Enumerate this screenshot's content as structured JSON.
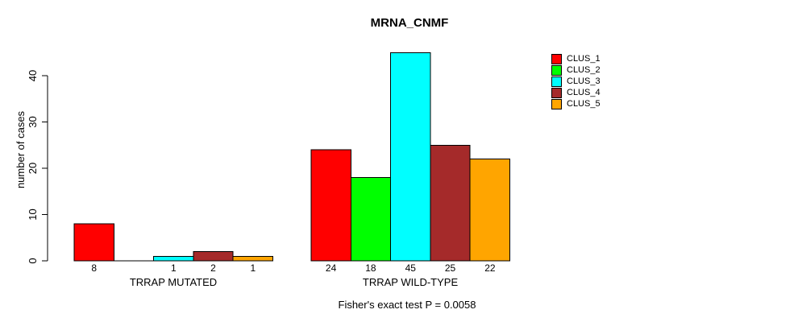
{
  "chart_data": {
    "type": "bar",
    "title": "MRNA_CNMF",
    "ylabel": "number of cases",
    "xlabel": "",
    "annotation": "Fisher's exact test P = 0.0058",
    "categories": [
      "TRRAP MUTATED",
      "TRRAP WILD-TYPE"
    ],
    "series": [
      {
        "name": "CLUS_1",
        "color": "#ff0000",
        "values": [
          8,
          24
        ]
      },
      {
        "name": "CLUS_2",
        "color": "#00ff00",
        "values": [
          0,
          18
        ]
      },
      {
        "name": "CLUS_3",
        "color": "#00ffff",
        "values": [
          1,
          45
        ]
      },
      {
        "name": "CLUS_4",
        "color": "#a52a2a",
        "values": [
          2,
          25
        ]
      },
      {
        "name": "CLUS_5",
        "color": "#ffa500",
        "values": [
          1,
          22
        ]
      }
    ],
    "bar_labels": [
      [
        "8",
        "",
        "1",
        "2",
        "1"
      ],
      [
        "24",
        "18",
        "45",
        "25",
        "22"
      ]
    ],
    "yticks": [
      0,
      10,
      20,
      30,
      40
    ],
    "ylim": [
      0,
      46
    ],
    "grid": false,
    "legend_position": "right",
    "axis_color": "#000000",
    "bar_border_color": "#000000"
  }
}
